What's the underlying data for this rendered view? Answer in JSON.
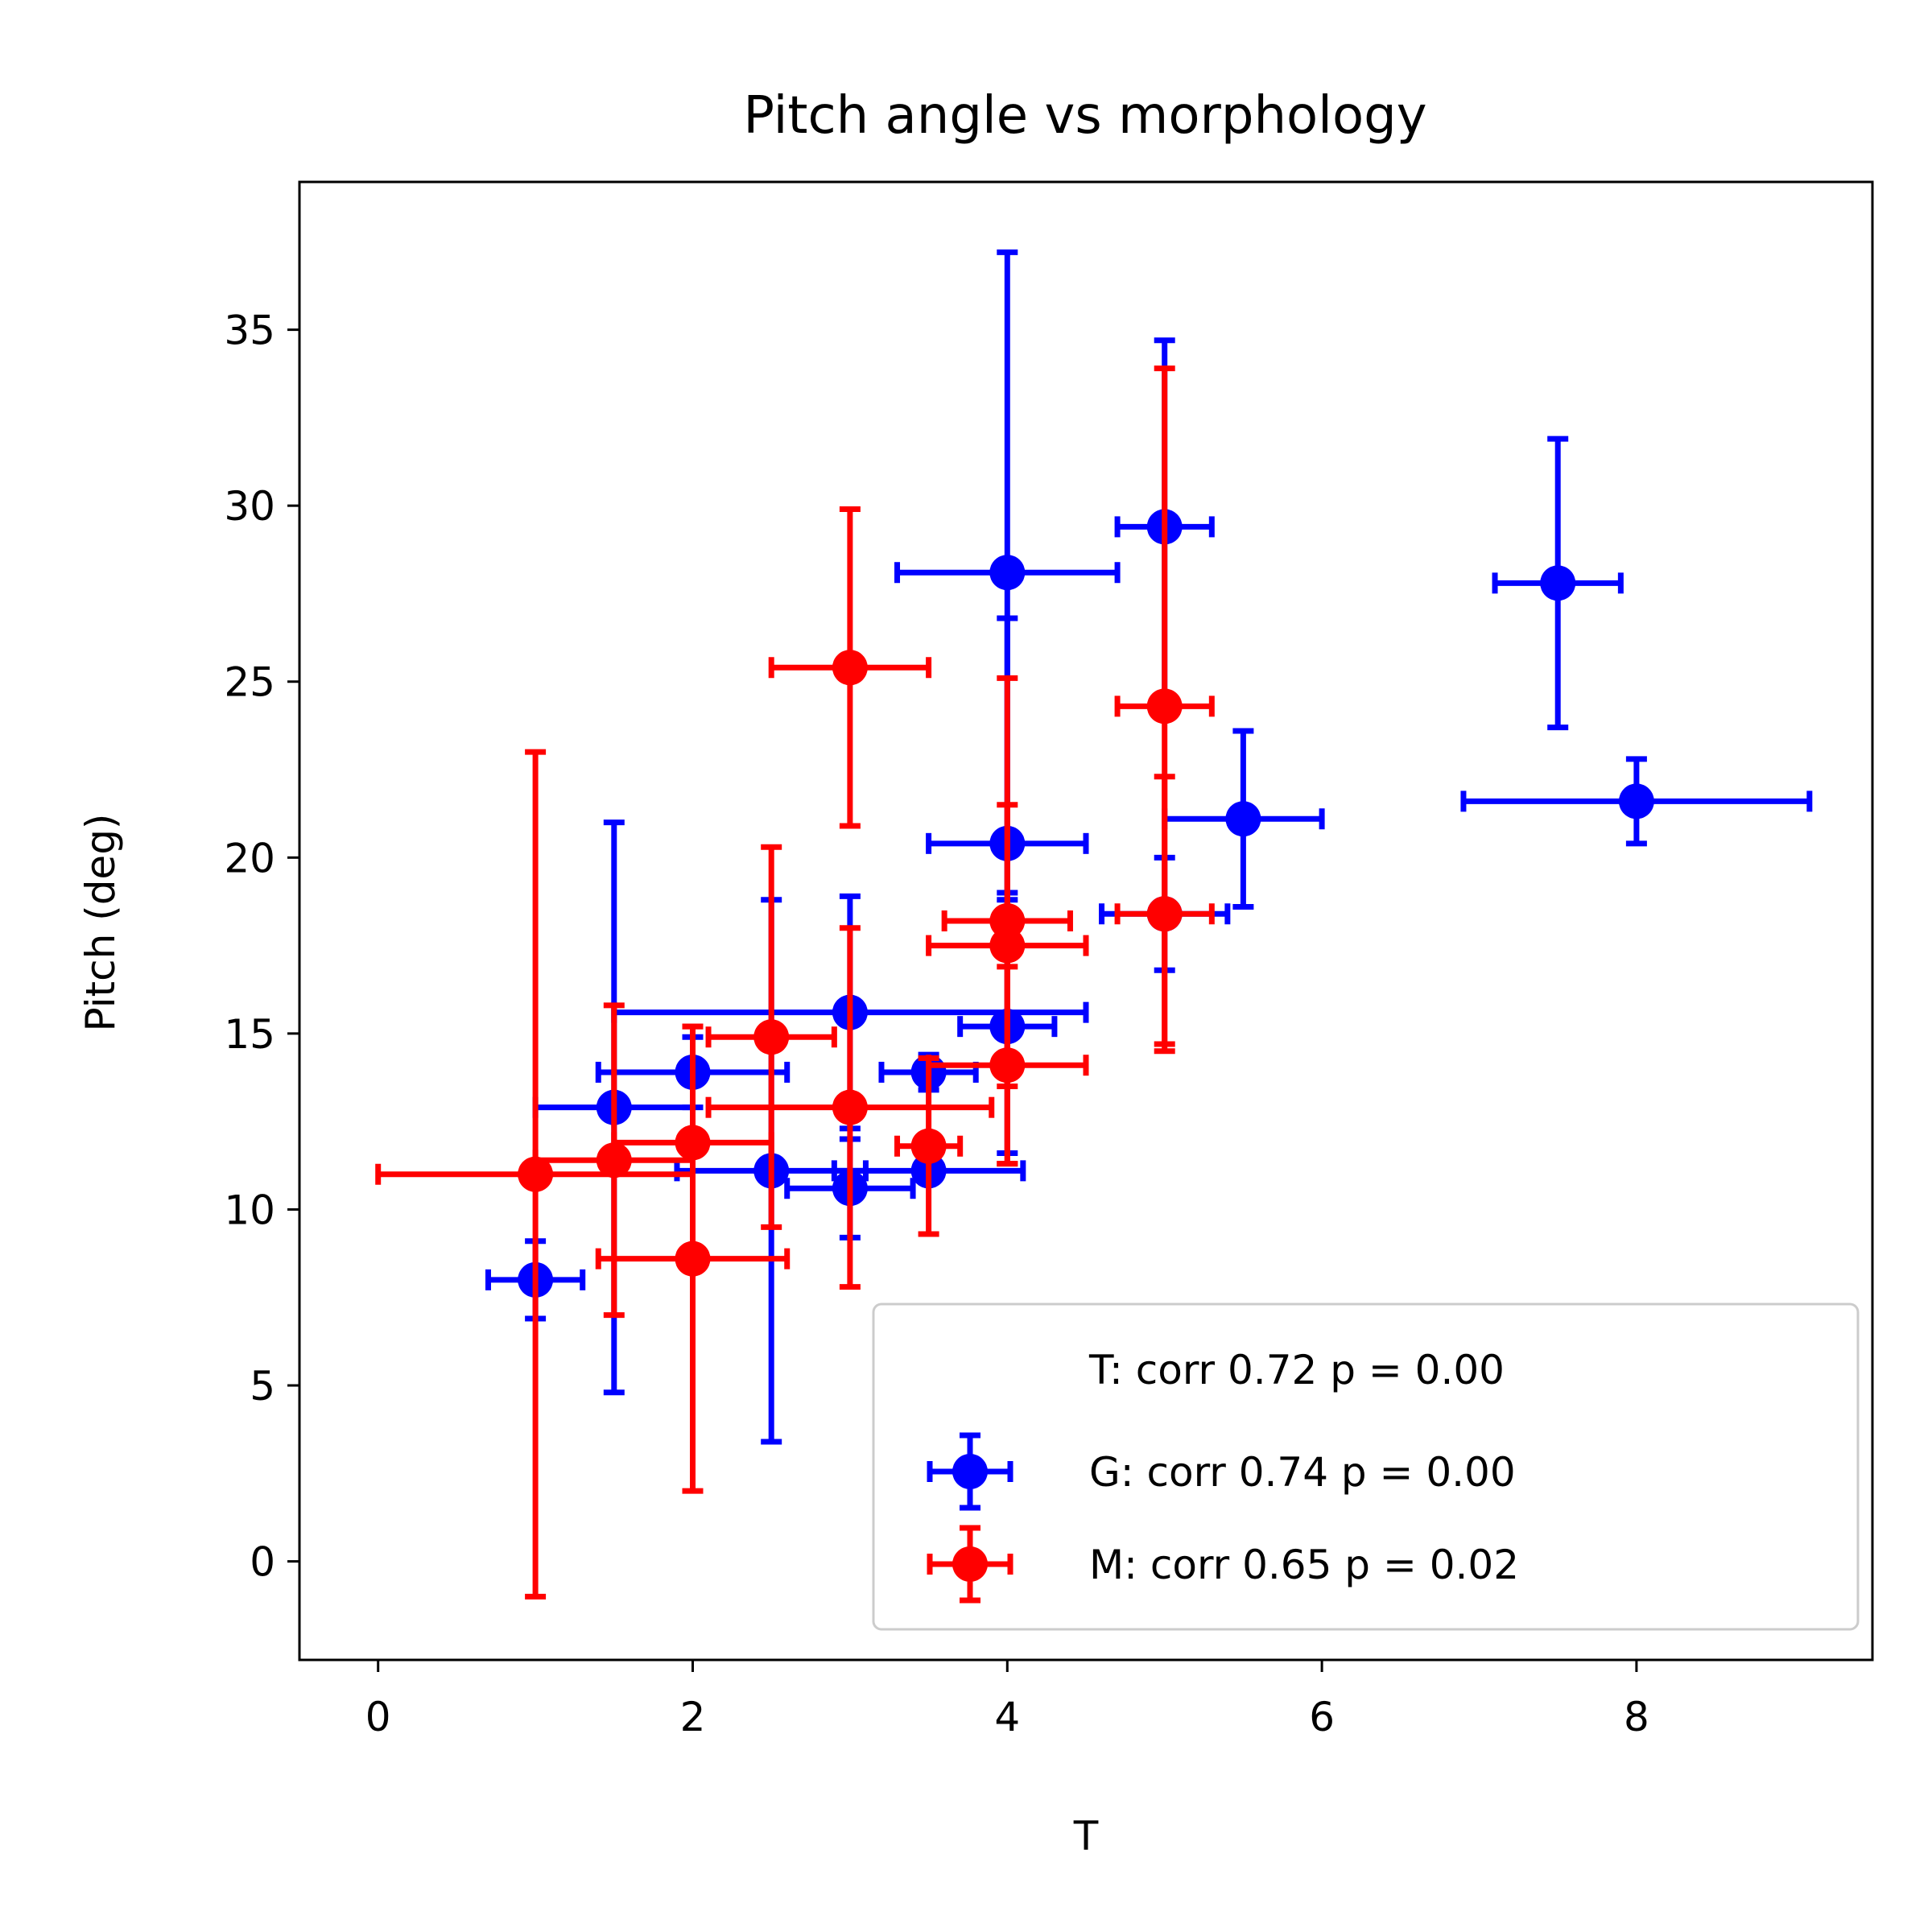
{
  "chart_data": {
    "type": "scatter",
    "title": "Pitch angle vs morphology",
    "xlabel": "T",
    "ylabel": "Pitch (deg)",
    "xlim": [
      -0.5,
      9.5
    ],
    "ylim": [
      -2.8,
      39.2
    ],
    "xticks": [
      0,
      2,
      4,
      6,
      8
    ],
    "yticks": [
      0,
      5,
      10,
      15,
      20,
      25,
      30,
      35
    ],
    "legend_location": "lower-right",
    "legend_header": "T: corr 0.72 p = 0.00",
    "series": [
      {
        "name": "G: corr 0.74 p = 0.00",
        "color": "#0000ff",
        "points": [
          {
            "x": 1.0,
            "y": 8.0,
            "xerr": 0.3,
            "yerr": 1.1
          },
          {
            "x": 1.5,
            "y": 12.9,
            "xerr": 0.5,
            "yerr": 8.1
          },
          {
            "x": 2.0,
            "y": 13.9,
            "xerr": 0.6,
            "yerr": 1.0
          },
          {
            "x": 2.5,
            "y": 11.1,
            "xerr": 0.6,
            "yerr": 7.7
          },
          {
            "x": 3.0,
            "y": 15.6,
            "xerr": 1.5,
            "yerr": 3.3
          },
          {
            "x": 3.0,
            "y": 10.6,
            "xerr": 0.4,
            "yerr": 1.4
          },
          {
            "x": 3.5,
            "y": 13.9,
            "xerr": 0.3,
            "yerr": 0.5
          },
          {
            "x": 3.5,
            "y": 11.1,
            "xerr": 0.6,
            "yerr": 0.0
          },
          {
            "x": 4.0,
            "y": 28.1,
            "xerr": 0.7,
            "yerr": 9.1
          },
          {
            "x": 4.0,
            "y": 20.4,
            "xerr": 0.5,
            "yerr": 6.4
          },
          {
            "x": 4.0,
            "y": 15.2,
            "xerr": 0.3,
            "yerr": 3.6
          },
          {
            "x": 5.0,
            "y": 29.4,
            "xerr": 0.3,
            "yerr": 5.3
          },
          {
            "x": 5.0,
            "y": 18.4,
            "xerr": 0.4,
            "yerr": 1.6
          },
          {
            "x": 5.5,
            "y": 21.1,
            "xerr": 0.5,
            "yerr": 2.5
          },
          {
            "x": 7.5,
            "y": 27.8,
            "xerr": 0.4,
            "yerr": 4.1
          },
          {
            "x": 8.0,
            "y": 21.6,
            "xerr": 1.1,
            "yerr": 1.2
          }
        ]
      },
      {
        "name": "M: corr 0.65 p = 0.02",
        "color": "#ff0000",
        "points": [
          {
            "x": 1.0,
            "y": 11.0,
            "xerr": 1.0,
            "yerr": 12.0
          },
          {
            "x": 1.5,
            "y": 11.4,
            "xerr": 0.5,
            "yerr": 4.4
          },
          {
            "x": 2.0,
            "y": 11.9,
            "xerr": 0.5,
            "yerr": 3.3
          },
          {
            "x": 2.0,
            "y": 8.6,
            "xerr": 0.6,
            "yerr": 6.6
          },
          {
            "x": 2.5,
            "y": 14.9,
            "xerr": 0.4,
            "yerr": 5.4
          },
          {
            "x": 3.0,
            "y": 25.4,
            "xerr": 0.5,
            "yerr": 4.5
          },
          {
            "x": 3.0,
            "y": 12.9,
            "xerr": 0.9,
            "yerr": 5.1
          },
          {
            "x": 3.5,
            "y": 11.8,
            "xerr": 0.2,
            "yerr": 2.5
          },
          {
            "x": 4.0,
            "y": 18.2,
            "xerr": 0.4,
            "yerr": 6.9
          },
          {
            "x": 4.0,
            "y": 17.5,
            "xerr": 0.5,
            "yerr": 4.0
          },
          {
            "x": 4.0,
            "y": 14.1,
            "xerr": 0.5,
            "yerr": 2.8
          },
          {
            "x": 5.0,
            "y": 24.3,
            "xerr": 0.3,
            "yerr": 9.6
          },
          {
            "x": 5.0,
            "y": 18.4,
            "xerr": 0.3,
            "yerr": 3.9
          }
        ]
      }
    ]
  }
}
